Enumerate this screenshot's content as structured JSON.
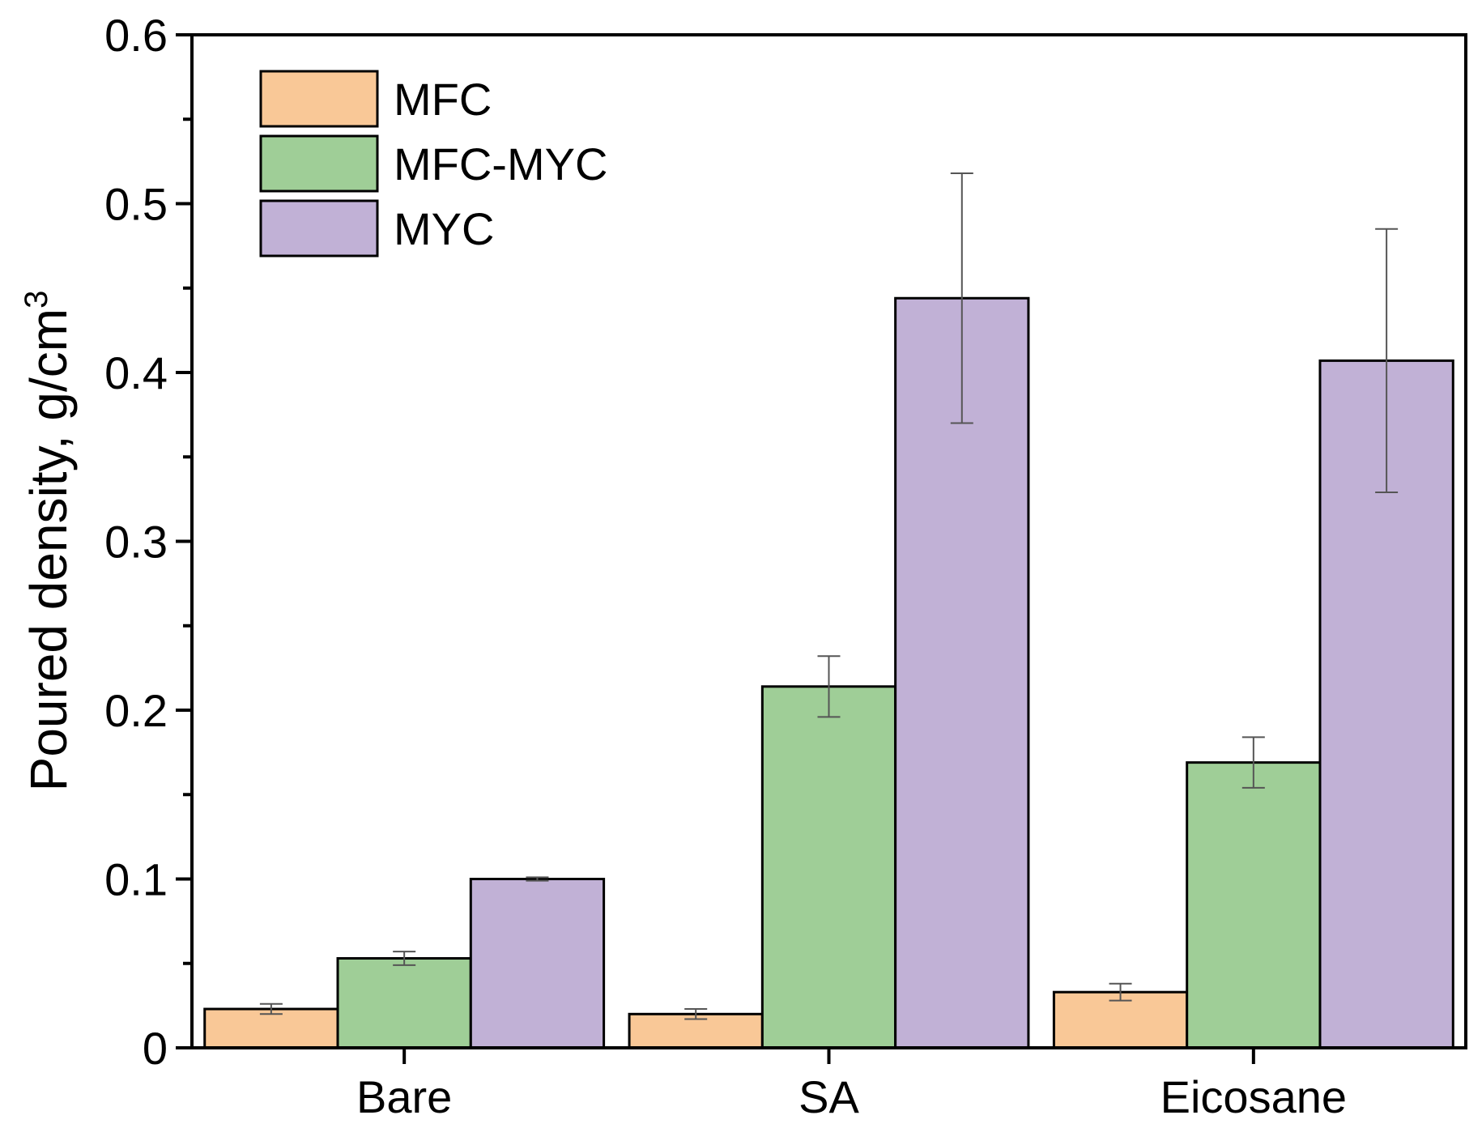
{
  "chart_data": {
    "type": "bar",
    "title": "",
    "xlabel": "",
    "ylabel": "Poured density, g/cm",
    "ylabel_superscript": "3",
    "categories": [
      "Bare",
      "SA",
      "Eicosane"
    ],
    "ylim": [
      0,
      0.6
    ],
    "yticks": [
      0,
      0.1,
      0.2,
      0.3,
      0.4,
      0.5,
      0.6
    ],
    "ytick_labels": [
      "0",
      "0.1",
      "0.2",
      "0.3",
      "0.4",
      "0.5",
      "0.6"
    ],
    "legend_position": "top-left",
    "grid": false,
    "series": [
      {
        "name": "MFC",
        "color": "#F9C897",
        "values": [
          0.023,
          0.02,
          0.033
        ],
        "errors": [
          0.003,
          0.003,
          0.005
        ]
      },
      {
        "name": "MFC-MYC",
        "color": "#9FCE97",
        "values": [
          0.053,
          0.214,
          0.169
        ],
        "errors": [
          0.004,
          0.018,
          0.015
        ]
      },
      {
        "name": "MYC",
        "color": "#C1B1D6",
        "values": [
          0.1,
          0.444,
          0.407
        ],
        "errors": [
          0.001,
          0.074,
          0.078
        ]
      }
    ]
  }
}
